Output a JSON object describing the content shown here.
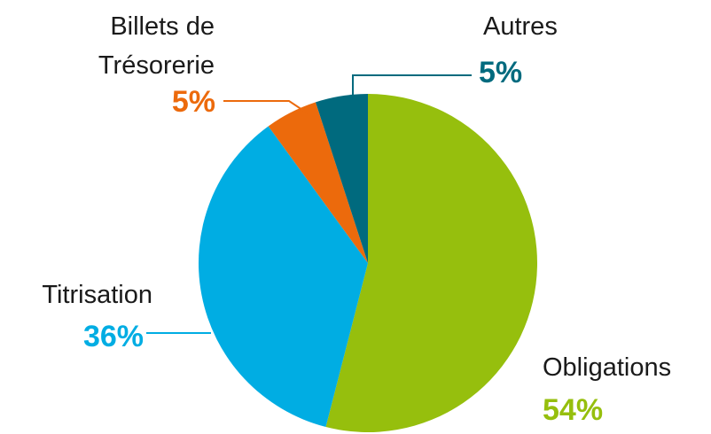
{
  "chart_data": {
    "type": "pie",
    "categories": [
      "Obligations",
      "Titrisation",
      "Billets de\nTrésorerie",
      "Autres"
    ],
    "values": [
      54,
      36,
      5,
      5
    ],
    "value_labels": [
      "54%",
      "36%",
      "5%",
      "5%"
    ],
    "colors": [
      "#96bf0d",
      "#00ade3",
      "#ec6a0c",
      "#006a7e"
    ]
  }
}
